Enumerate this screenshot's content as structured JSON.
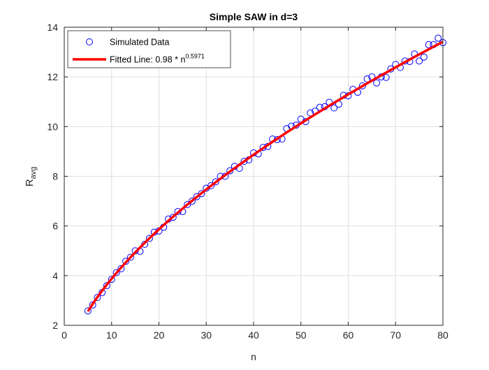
{
  "chart_data": {
    "type": "scatter",
    "title": "Simple SAW in d=3",
    "xlabel": "n",
    "ylabel_base": "R",
    "ylabel_sub": "avg",
    "xlim": [
      0,
      80
    ],
    "ylim": [
      2,
      14
    ],
    "xticks": [
      0,
      10,
      20,
      30,
      40,
      50,
      60,
      70,
      80
    ],
    "yticks": [
      2,
      4,
      6,
      8,
      10,
      12,
      14
    ],
    "grid": true,
    "legend_position": "top-left",
    "series": [
      {
        "name": "Simulated Data",
        "kind": "markers",
        "marker": "circle",
        "color": "#0000ff",
        "x": [
          5,
          6,
          7,
          8,
          9,
          10,
          11,
          12,
          13,
          14,
          15,
          16,
          17,
          18,
          19,
          20,
          21,
          22,
          23,
          24,
          25,
          26,
          27,
          28,
          29,
          30,
          31,
          32,
          33,
          34,
          35,
          36,
          37,
          38,
          39,
          40,
          41,
          42,
          43,
          44,
          45,
          46,
          47,
          48,
          49,
          50,
          51,
          52,
          53,
          54,
          55,
          56,
          57,
          58,
          59,
          60,
          61,
          62,
          63,
          64,
          65,
          66,
          67,
          68,
          69,
          70,
          71,
          72,
          73,
          74,
          75,
          76,
          77,
          78,
          79,
          80
        ],
        "y": [
          2.58,
          2.82,
          3.12,
          3.32,
          3.6,
          3.85,
          4.12,
          4.28,
          4.58,
          4.74,
          5.0,
          4.98,
          5.26,
          5.5,
          5.75,
          5.8,
          5.95,
          6.28,
          6.35,
          6.58,
          6.58,
          6.86,
          7.0,
          7.18,
          7.3,
          7.52,
          7.62,
          7.78,
          8.0,
          8.0,
          8.22,
          8.4,
          8.32,
          8.6,
          8.66,
          8.94,
          8.9,
          9.16,
          9.2,
          9.5,
          9.48,
          9.5,
          9.92,
          10.02,
          10.06,
          10.3,
          10.2,
          10.55,
          10.62,
          10.78,
          10.8,
          10.98,
          10.75,
          10.9,
          11.26,
          11.24,
          11.5,
          11.38,
          11.64,
          11.92,
          12.0,
          11.76,
          12.0,
          11.98,
          12.32,
          12.5,
          12.38,
          12.64,
          12.62,
          12.92,
          12.64,
          12.8,
          13.3,
          13.3,
          13.56,
          13.38
        ]
      },
      {
        "name_prefix": "Fitted Line: 0.98 * n",
        "name_exponent": "0.5971",
        "kind": "line",
        "color": "#ff0000",
        "coefficient": 0.98,
        "exponent": 0.5971,
        "x_range": [
          5,
          80
        ]
      }
    ]
  }
}
